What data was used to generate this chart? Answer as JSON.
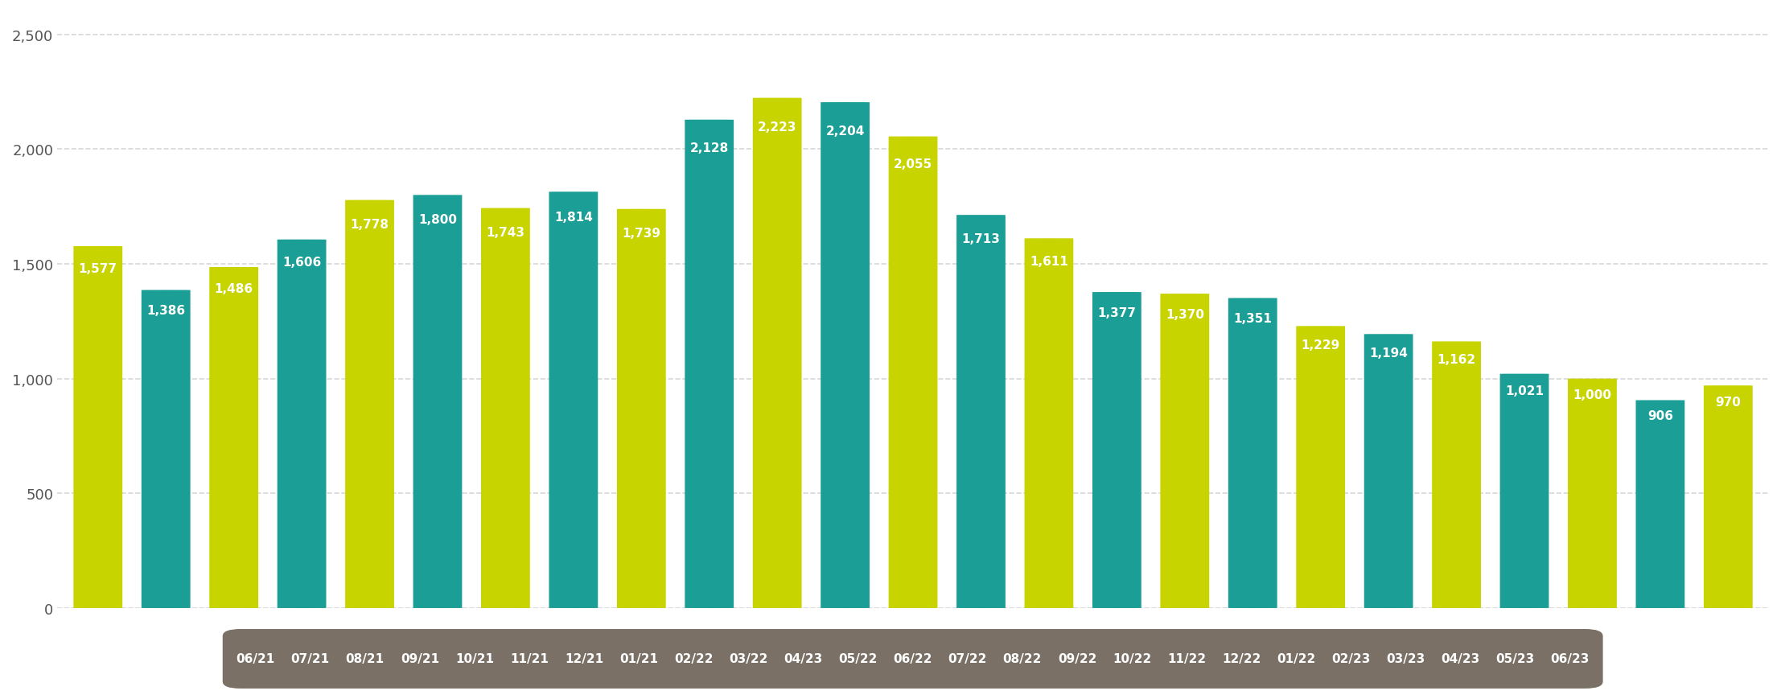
{
  "categories": [
    "06/21",
    "07/21",
    "08/21",
    "09/21",
    "10/21",
    "11/21",
    "12/21",
    "01/21",
    "02/22",
    "03/22",
    "04/23",
    "05/22",
    "06/22",
    "07/22",
    "08/22",
    "09/22",
    "10/22",
    "11/22",
    "12/22",
    "01/22",
    "02/23",
    "03/23",
    "04/23",
    "05/23",
    "06/23"
  ],
  "labels_x": [
    "06/21",
    "07/21",
    "08/21",
    "09/21",
    "10/21",
    "11/21",
    "12/21",
    "01/21",
    "02/22",
    "03/22",
    "04/23",
    "05/22",
    "06/22",
    "07/22",
    "08/22",
    "09/22",
    "10/22",
    "11/22",
    "12/22",
    "01/22",
    "02/23",
    "03/23",
    "04/23",
    "05/23",
    "06/23"
  ],
  "values": [
    1577,
    1386,
    1486,
    1606,
    1778,
    1800,
    1743,
    1814,
    1739,
    2128,
    2223,
    2204,
    2055,
    1713,
    1611,
    1377,
    1370,
    1351,
    1229,
    1194,
    1162,
    1021,
    1000,
    906,
    970
  ],
  "bar_colors": [
    "#c8d400",
    "#1a9e96",
    "#c8d400",
    "#1a9e96",
    "#c8d400",
    "#1a9e96",
    "#c8d400",
    "#1a9e96",
    "#c8d400",
    "#1a9e96",
    "#c8d400",
    "#1a9e96",
    "#c8d400",
    "#1a9e96",
    "#c8d400",
    "#1a9e96",
    "#c8d400",
    "#1a9e96",
    "#c8d400",
    "#1a9e96",
    "#c8d400",
    "#1a9e96",
    "#c8d400",
    "#1a9e96",
    "#c8d400"
  ],
  "x_labels": [
    "06/21",
    "07/21",
    "08/21",
    "09/21",
    "10/21",
    "11/21",
    "12/21",
    "01/21",
    "02/22",
    "03/22",
    "04/23",
    "05/22",
    "06/22",
    "07/22",
    "08/22",
    "09/22",
    "10/22",
    "11/22",
    "12/22",
    "01/22",
    "02/23",
    "03/23",
    "04/23",
    "05/23",
    "06/23"
  ],
  "ylim": [
    0,
    2600
  ],
  "yticks": [
    0,
    500,
    1000,
    1500,
    2000,
    2500
  ],
  "background_color": "#ffffff",
  "bar_label_color": "#ffffff",
  "gridline_color": "#cccccc",
  "xlabel_bg_color": "#7a7065",
  "xlabel_text_color": "#ffffff",
  "bar_label_fontsize": 11,
  "xlabel_fontsize": 11,
  "ylabel_fontsize": 13,
  "bar_width": 0.72,
  "rounded_top": true
}
